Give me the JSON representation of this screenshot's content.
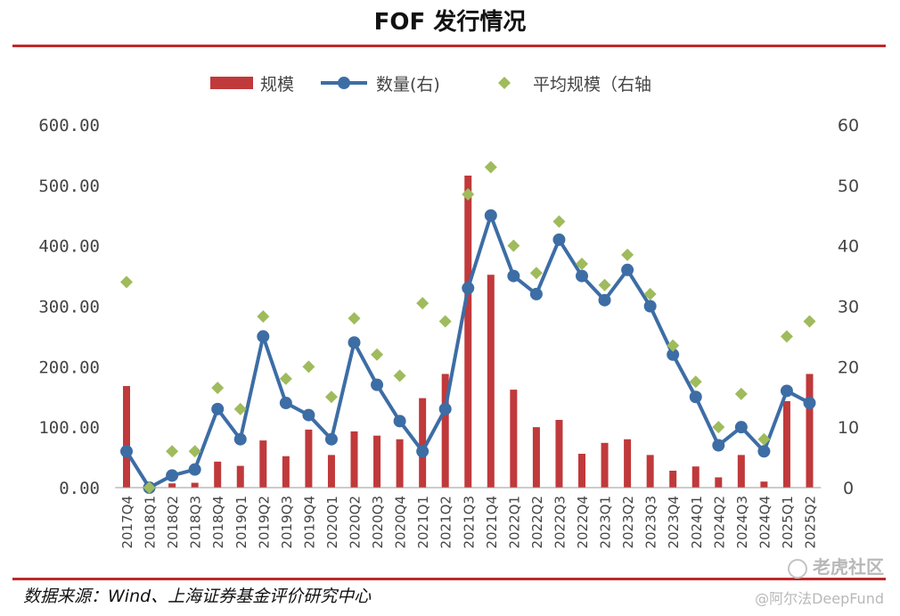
{
  "title": "FOF 发行情况",
  "source": "数据来源：Wind、上海证券基金评价研究中心",
  "watermark": {
    "brand": "老虎社区",
    "user": "@阿尔法DeepFund"
  },
  "colors": {
    "bar": "#c0393b",
    "line": "#3d6da5",
    "diamond": "#9fbb5c",
    "rule": "#c0282a",
    "axis_text": "#444444"
  },
  "chart_data": {
    "type": "bar+line+scatter",
    "categories": [
      "2017Q4",
      "2018Q1",
      "2018Q2",
      "2018Q3",
      "2018Q4",
      "2019Q1",
      "2019Q2",
      "2019Q3",
      "2019Q4",
      "2020Q1",
      "2020Q2",
      "2020Q3",
      "2020Q4",
      "2021Q1",
      "2021Q2",
      "2021Q3",
      "2021Q4",
      "2022Q1",
      "2022Q2",
      "2022Q3",
      "2022Q4",
      "2023Q1",
      "2023Q2",
      "2023Q3",
      "2023Q4",
      "2024Q1",
      "2024Q2",
      "2024Q3",
      "2024Q4",
      "2025Q1",
      "2025Q2"
    ],
    "series": [
      {
        "name": "规模",
        "type": "bar",
        "axis": "left",
        "values": [
          168,
          2,
          7,
          8,
          43,
          36,
          78,
          52,
          96,
          54,
          93,
          86,
          80,
          148,
          188,
          516,
          352,
          162,
          100,
          112,
          56,
          74,
          80,
          54,
          28,
          35,
          17,
          54,
          10,
          143,
          188
        ]
      },
      {
        "name": "数量(右)",
        "type": "line",
        "axis": "right",
        "values": [
          6,
          0,
          2,
          3,
          13,
          8,
          25,
          14,
          12,
          8,
          24,
          17,
          11,
          6,
          13,
          33,
          45,
          35,
          32,
          41,
          35,
          31,
          36,
          30,
          22,
          15,
          7,
          10,
          6,
          16,
          14
        ]
      },
      {
        "name": "平均规模（右轴",
        "type": "scatter",
        "axis": "right",
        "values": [
          34,
          0,
          6,
          6,
          16.5,
          13,
          28.3,
          18,
          20,
          15,
          28,
          22,
          18.5,
          30.5,
          27.5,
          48.5,
          53,
          40,
          35.5,
          44,
          37,
          33.5,
          38.5,
          32,
          23.5,
          17.5,
          10,
          15.5,
          8,
          25,
          27.5
        ]
      }
    ],
    "left_axis": {
      "ylim": [
        0,
        600
      ],
      "ticks": [
        "0.00",
        "100.00",
        "200.00",
        "300.00",
        "400.00",
        "500.00",
        "600.00"
      ]
    },
    "right_axis": {
      "ylim": [
        0,
        60
      ],
      "ticks": [
        "0",
        "10",
        "20",
        "30",
        "40",
        "50",
        "60"
      ]
    },
    "legend": {
      "position": "top-center",
      "labels": [
        "规模",
        "数量(右)",
        "平均规模（右轴"
      ]
    },
    "grid": false
  }
}
